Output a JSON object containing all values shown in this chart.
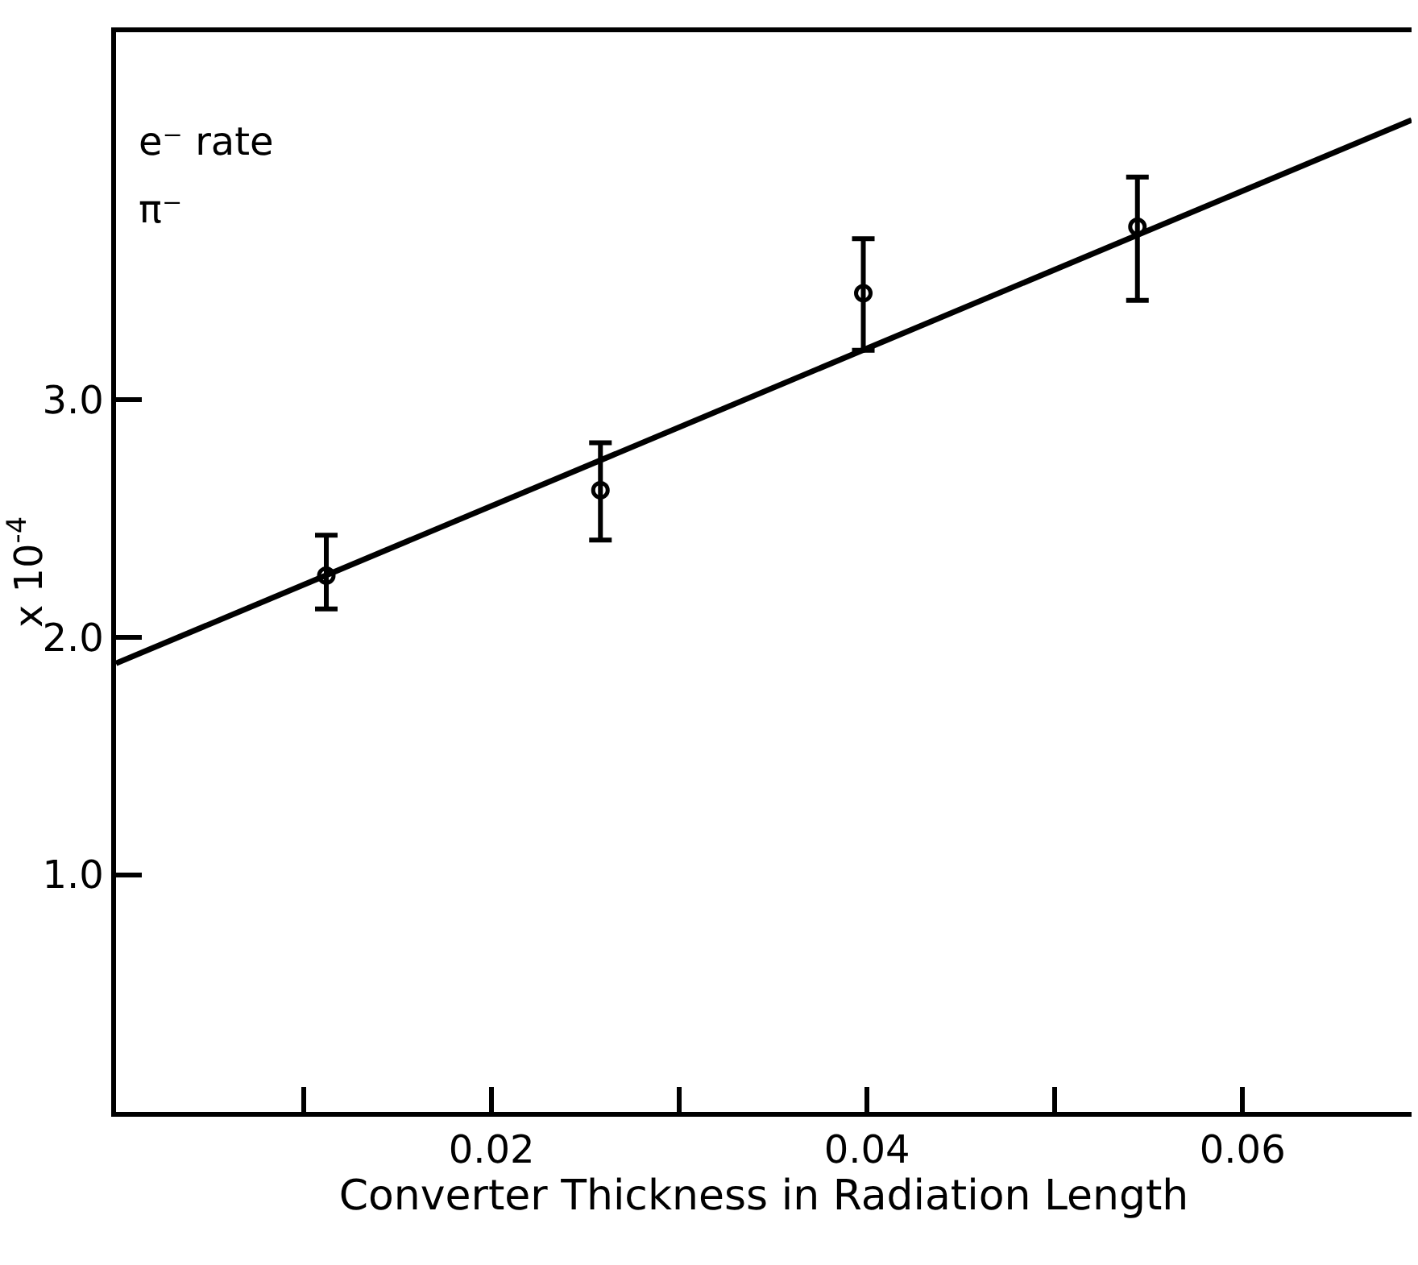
{
  "chart_data": {
    "type": "scatter",
    "xlabel": "Converter Thickness in Radiation Length",
    "ylabel": "x 10$^{-4}$",
    "annotations": [
      "e⁻ rate",
      "π⁻"
    ],
    "xlim": [
      0,
      0.069
    ],
    "ylim": [
      0,
      4.55
    ],
    "xticks": [
      {
        "value": 0.01,
        "label": null
      },
      0.02,
      {
        "value": 0.03,
        "label": null
      },
      0.04,
      {
        "value": 0.05,
        "label": null
      },
      0.06
    ],
    "yticks": [
      {
        "value": 1,
        "label": "1.0"
      },
      {
        "value": 2,
        "label": "2.0"
      },
      {
        "value": 3,
        "label": "3.0"
      }
    ],
    "series": [
      {
        "marker": "circle",
        "color": "#000000",
        "x": [
          0.0112,
          0.0258,
          0.0398,
          0.0544
        ],
        "values": [
          2.26,
          2.62,
          3.45,
          3.73
        ],
        "errors": [
          [
            2.12,
            2.43
          ],
          [
            2.41,
            2.82
          ],
          [
            3.21,
            3.68
          ],
          [
            3.42,
            3.94
          ]
        ]
      },
      {
        "type": "line",
        "color": "#000000",
        "x": [
          0,
          0.069
        ],
        "values": [
          1.89,
          4.18
        ],
        "line_style": "solid"
      }
    ]
  }
}
